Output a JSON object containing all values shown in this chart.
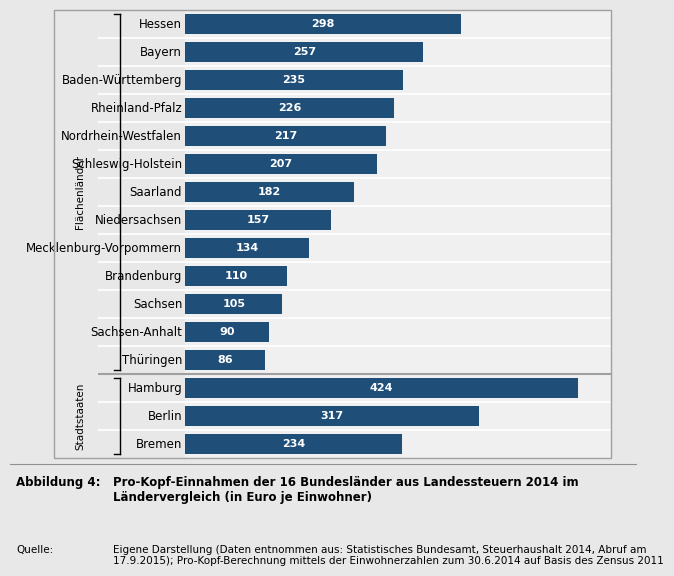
{
  "categories": [
    "Hessen",
    "Bayern",
    "Baden-Württemberg",
    "Rheinland-Pfalz",
    "Nordrhein-Westfalen",
    "Schleswig-Holstein",
    "Saarland",
    "Niedersachsen",
    "Mecklenburg-Vorpommern",
    "Brandenburg",
    "Sachsen",
    "Sachsen-Anhalt",
    "Thüringen",
    "Hamburg",
    "Berlin",
    "Bremen"
  ],
  "values": [
    298,
    257,
    235,
    226,
    217,
    207,
    182,
    157,
    134,
    110,
    105,
    90,
    86,
    424,
    317,
    234
  ],
  "bar_color": "#1F4E79",
  "background_color": "#E8E8E8",
  "plot_background": "#F0F0F0",
  "label_bg": "#E0E0E0",
  "flachenland_label": "Flächenländer",
  "stadtstaaten_label": "Stadtstaaten",
  "flachenland_count": 13,
  "stadtstaaten_count": 3,
  "caption_label": "Abbildung 4:",
  "caption_text": "Pro-Kopf-Einnahmen der 16 Bundesländer aus Landessteuern 2014 im\nLändervergleich (in Euro je Einwohner)",
  "source_label": "Quelle:",
  "source_text": "Eigene Darstellung (Daten entnommen aus: Statistisches Bundesamt, Steuerhaushalt 2014, Abruf am\n17.9.2015); Pro-Kopf-Berechnung mittels der Einwohnerzahlen zum 30.6.2014 auf Basis des Zensus 2011",
  "xlim": [
    0,
    460
  ],
  "tick_label_fontsize": 8.5,
  "bar_label_fontsize": 8,
  "group_label_fontsize": 7.5
}
